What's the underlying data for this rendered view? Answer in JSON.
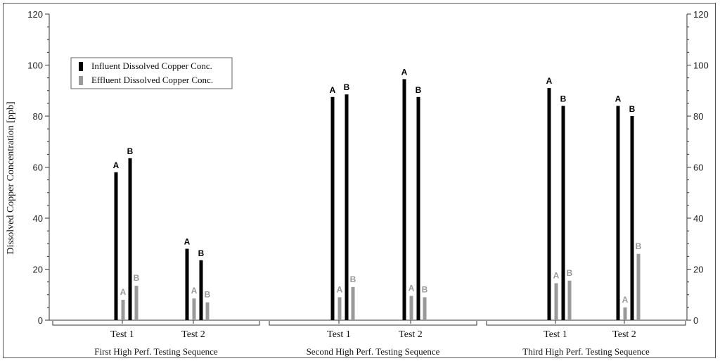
{
  "chart_data": {
    "type": "bar",
    "ylabel": "Dissolved Copper Concentration [ppb]",
    "ylim": [
      0,
      120
    ],
    "yticks": [
      0,
      20,
      40,
      60,
      80,
      100,
      120
    ],
    "grid": false,
    "legend_position": "top-left",
    "colors": {
      "influent": "#000000",
      "effluent": "#999999"
    },
    "series": [
      {
        "name": "Influent Dissolved Copper Conc."
      },
      {
        "name": "Effluent Dissolved Copper Conc."
      }
    ],
    "groups": [
      {
        "label": "First High Perf. Testing Sequence",
        "tests": [
          {
            "label": "Test 1",
            "influent": [
              {
                "tag": "A",
                "value": 58
              },
              {
                "tag": "B",
                "value": 63.5
              }
            ],
            "effluent": [
              {
                "tag": "A",
                "value": 8
              },
              {
                "tag": "B",
                "value": 13.5
              }
            ]
          },
          {
            "label": "Test 2",
            "influent": [
              {
                "tag": "A",
                "value": 28
              },
              {
                "tag": "B",
                "value": 23.5
              }
            ],
            "effluent": [
              {
                "tag": "A",
                "value": 8.5
              },
              {
                "tag": "B",
                "value": 7
              }
            ]
          }
        ]
      },
      {
        "label": "Second High Perf. Testing Sequence",
        "tests": [
          {
            "label": "Test 1",
            "influent": [
              {
                "tag": "A",
                "value": 87.5
              },
              {
                "tag": "B",
                "value": 88.5
              }
            ],
            "effluent": [
              {
                "tag": "A",
                "value": 9
              },
              {
                "tag": "B",
                "value": 13
              }
            ]
          },
          {
            "label": "Test 2",
            "influent": [
              {
                "tag": "A",
                "value": 94.5
              },
              {
                "tag": "B",
                "value": 87.5
              }
            ],
            "effluent": [
              {
                "tag": "A",
                "value": 9.5
              },
              {
                "tag": "B",
                "value": 9
              }
            ]
          }
        ]
      },
      {
        "label": "Third High Perf. Testing Sequence",
        "tests": [
          {
            "label": "Test 1",
            "influent": [
              {
                "tag": "A",
                "value": 91
              },
              {
                "tag": "B",
                "value": 84
              }
            ],
            "effluent": [
              {
                "tag": "A",
                "value": 14.5
              },
              {
                "tag": "B",
                "value": 15.5
              }
            ]
          },
          {
            "label": "Test 2",
            "influent": [
              {
                "tag": "A",
                "value": 84
              },
              {
                "tag": "B",
                "value": 80
              }
            ],
            "effluent": [
              {
                "tag": "A",
                "value": 5
              },
              {
                "tag": "B",
                "value": 26
              }
            ]
          }
        ]
      }
    ]
  }
}
